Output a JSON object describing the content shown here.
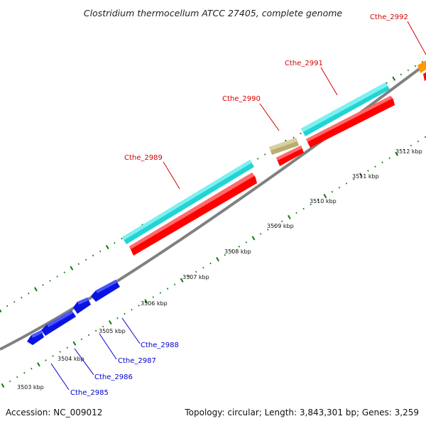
{
  "title": "Clostridium thermocellum ATCC 27405, complete genome",
  "footer": {
    "accession": "Accession: NC_009012",
    "info": "Topology: circular; Length: 3,843,301 bp; Genes: 3,259"
  },
  "colors": {
    "backbone": "#808080",
    "tick_dots": "#0a7a0a",
    "forward_label": "#d40000",
    "reverse_label": "#0000cc",
    "gene_red": "#ff0000",
    "gene_cyan": "#22d4d4",
    "gene_khaki": "#b8ad72",
    "gene_blue": "#0a14e0",
    "gene_orange": "#ff9900"
  },
  "scale_ticks": [
    {
      "label": "3503 kbp"
    },
    {
      "label": "3504 kbp"
    },
    {
      "label": "3505 kbp"
    },
    {
      "label": "3506 kbp"
    },
    {
      "label": "3507 kbp"
    },
    {
      "label": "3508 kbp"
    },
    {
      "label": "3509 kbp"
    },
    {
      "label": "3510 kbp"
    },
    {
      "label": "3511 kbp"
    },
    {
      "label": "3512 kbp"
    }
  ],
  "genes_forward": [
    {
      "name": "Cthe_2989",
      "feature_color": "cyan"
    },
    {
      "name": "Cthe_2990",
      "feature_color": "khaki"
    },
    {
      "name": "Cthe_2991",
      "feature_color": "cyan"
    },
    {
      "name": "Cthe_2992",
      "feature_color": "orange"
    }
  ],
  "genes_reverse": [
    {
      "name": "Cthe_2985"
    },
    {
      "name": "Cthe_2986"
    },
    {
      "name": "Cthe_2987"
    },
    {
      "name": "Cthe_2988"
    }
  ]
}
